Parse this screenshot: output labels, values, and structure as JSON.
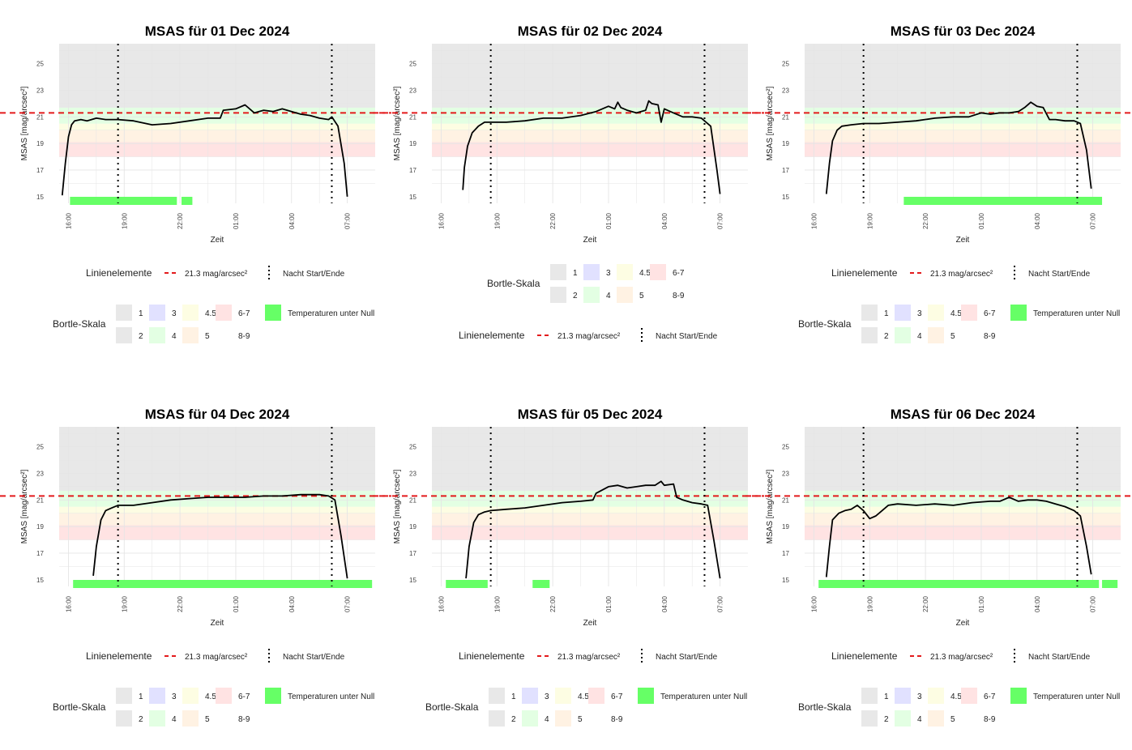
{
  "legend": {
    "line_title": "Linienelemente",
    "line_threshold_label": "21.3 mag/arcsec²",
    "line_night_label": "Nacht Start/Ende",
    "bortle_title": "Bortle-Skala",
    "bortle_items": [
      {
        "label": "1",
        "color": "#e8e8e8"
      },
      {
        "label": "2",
        "color": "#e8e8e8"
      },
      {
        "label": "3",
        "color": "#e1e1ff"
      },
      {
        "label": "4",
        "color": "#e3ffe3"
      },
      {
        "label": "4.5",
        "color": "#fdfde3"
      },
      {
        "label": "5",
        "color": "#fff2e3"
      },
      {
        "label": "6-7",
        "color": "#ffe3e3"
      },
      {
        "label": "8-9",
        "color": "#ffffff"
      }
    ],
    "frost_label": "Temperaturen unter Null",
    "frost_color": "#66ff66"
  },
  "colors": {
    "threshold_line": "#e31a1c",
    "msas_line": "#000000",
    "grid": "#e5e5e5",
    "band_top": "#e8e8e8"
  },
  "chart_data": [
    {
      "type": "line",
      "title": "MSAS für 01 Dec 2024",
      "xlabel": "Zeit",
      "ylabel": "MSAS [mag/arcsec²]",
      "x_ticks": [
        "16:00",
        "19:00",
        "22:00",
        "01:00",
        "04:00",
        "07:00"
      ],
      "y_ticks": [
        15,
        17,
        19,
        21,
        23,
        25
      ],
      "ylim": [
        14.5,
        26.5
      ],
      "xlim_hours": [
        15.5,
        32.5
      ],
      "threshold": 21.3,
      "night_start": "18:40",
      "night_end": "06:10",
      "bortle_bands": [
        {
          "class": "6-7",
          "range": [
            18.0,
            19.1
          ]
        },
        {
          "class": "5",
          "range": [
            19.1,
            20.0
          ]
        },
        {
          "class": "4.5",
          "range": [
            20.0,
            20.49
          ]
        },
        {
          "class": "4",
          "range": [
            20.49,
            21.69
          ]
        }
      ],
      "frost_periods": [
        [
          "16:05",
          "21:50"
        ],
        [
          "22:05",
          "22:40"
        ]
      ],
      "series": [
        {
          "x": [
            "15:40",
            "15:50",
            "16:00",
            "16:10",
            "16:20",
            "16:40",
            "17:00",
            "17:30",
            "18:00",
            "18:40",
            "19:30",
            "20:30",
            "21:30",
            "22:30",
            "23:30",
            "00:10",
            "00:20",
            "01:00",
            "01:30",
            "02:00",
            "02:30",
            "03:00",
            "03:30",
            "04:00",
            "04:30",
            "05:00",
            "05:30",
            "06:00",
            "06:10",
            "06:30",
            "06:50",
            "07:00"
          ],
          "y": [
            15.1,
            17.5,
            19.5,
            20.4,
            20.7,
            20.8,
            20.7,
            20.9,
            20.8,
            20.8,
            20.7,
            20.4,
            20.5,
            20.7,
            20.9,
            20.9,
            21.5,
            21.6,
            21.9,
            21.3,
            21.5,
            21.4,
            21.6,
            21.4,
            21.2,
            21.1,
            20.9,
            20.8,
            21.0,
            20.3,
            17.5,
            15.0
          ]
        }
      ]
    },
    {
      "type": "line",
      "title": "MSAS für 02 Dec 2024",
      "xlabel": "Zeit",
      "ylabel": "MSAS [mag/arcsec²]",
      "x_ticks": [
        "16:00",
        "19:00",
        "22:00",
        "01:00",
        "04:00",
        "07:00"
      ],
      "y_ticks": [
        15,
        17,
        19,
        21,
        23,
        25
      ],
      "ylim": [
        14.5,
        26.5
      ],
      "xlim_hours": [
        15.5,
        32.5
      ],
      "threshold": 21.3,
      "night_start": "18:40",
      "night_end": "06:10",
      "bortle_bands": [
        {
          "class": "6-7",
          "range": [
            18.0,
            19.1
          ]
        },
        {
          "class": "5",
          "range": [
            19.1,
            20.0
          ]
        },
        {
          "class": "4.5",
          "range": [
            20.0,
            20.49
          ]
        },
        {
          "class": "4",
          "range": [
            20.49,
            21.69
          ]
        }
      ],
      "frost_periods": [],
      "series": [
        {
          "x": [
            "17:10",
            "17:15",
            "17:25",
            "17:40",
            "18:00",
            "18:20",
            "18:40",
            "19:30",
            "20:30",
            "21:30",
            "22:30",
            "23:30",
            "00:20",
            "00:40",
            "01:00",
            "01:20",
            "01:30",
            "01:40",
            "02:00",
            "02:30",
            "03:00",
            "03:10",
            "03:20",
            "03:40",
            "03:50",
            "04:00",
            "04:30",
            "05:00",
            "05:30",
            "06:00",
            "06:30",
            "06:50",
            "07:00"
          ],
          "y": [
            15.5,
            17.2,
            18.8,
            19.8,
            20.3,
            20.6,
            20.6,
            20.6,
            20.7,
            20.9,
            20.9,
            21.1,
            21.4,
            21.6,
            21.8,
            21.6,
            22.1,
            21.7,
            21.5,
            21.3,
            21.5,
            22.2,
            22.0,
            21.9,
            20.6,
            21.6,
            21.3,
            21.0,
            21.0,
            20.9,
            20.3,
            17.0,
            15.2
          ]
        }
      ]
    },
    {
      "type": "line",
      "title": "MSAS für 03 Dec 2024",
      "xlabel": "Zeit",
      "ylabel": "MSAS [mag/arcsec²]",
      "x_ticks": [
        "16:00",
        "19:00",
        "22:00",
        "01:00",
        "04:00",
        "07:00"
      ],
      "y_ticks": [
        15,
        17,
        19,
        21,
        23,
        25
      ],
      "ylim": [
        14.5,
        26.5
      ],
      "xlim_hours": [
        15.5,
        32.5
      ],
      "threshold": 21.3,
      "night_start": "18:40",
      "night_end": "06:10",
      "bortle_bands": [
        {
          "class": "6-7",
          "range": [
            18.0,
            19.1
          ]
        },
        {
          "class": "5",
          "range": [
            19.1,
            20.0
          ]
        },
        {
          "class": "4.5",
          "range": [
            20.0,
            20.49
          ]
        },
        {
          "class": "4",
          "range": [
            20.49,
            21.69
          ]
        }
      ],
      "frost_periods": [
        [
          "20:50",
          "07:30"
        ]
      ],
      "series": [
        {
          "x": [
            "16:40",
            "16:50",
            "17:00",
            "17:15",
            "17:30",
            "18:00",
            "18:40",
            "19:30",
            "20:30",
            "21:30",
            "22:30",
            "23:30",
            "00:20",
            "01:00",
            "01:30",
            "02:00",
            "02:30",
            "03:00",
            "03:20",
            "03:40",
            "04:00",
            "04:20",
            "04:40",
            "05:00",
            "05:30",
            "06:00",
            "06:20",
            "06:40",
            "06:55"
          ],
          "y": [
            15.2,
            17.5,
            19.2,
            20.0,
            20.3,
            20.4,
            20.5,
            20.5,
            20.6,
            20.7,
            20.9,
            21.0,
            21.0,
            21.3,
            21.2,
            21.3,
            21.3,
            21.4,
            21.7,
            22.1,
            21.8,
            21.7,
            20.8,
            20.8,
            20.7,
            20.7,
            20.5,
            18.5,
            15.6
          ]
        }
      ]
    },
    {
      "type": "line",
      "title": "MSAS für 04 Dec 2024",
      "xlabel": "Zeit",
      "ylabel": "MSAS [mag/arcsec²]",
      "x_ticks": [
        "16:00",
        "19:00",
        "22:00",
        "01:00",
        "04:00",
        "07:00"
      ],
      "y_ticks": [
        15,
        17,
        19,
        21,
        23,
        25
      ],
      "ylim": [
        14.5,
        26.5
      ],
      "xlim_hours": [
        15.5,
        32.5
      ],
      "threshold": 21.3,
      "night_start": "18:40",
      "night_end": "06:10",
      "bortle_bands": [
        {
          "class": "6-7",
          "range": [
            18.0,
            19.1
          ]
        },
        {
          "class": "5",
          "range": [
            19.1,
            20.0
          ]
        },
        {
          "class": "4.5",
          "range": [
            20.0,
            20.49
          ]
        },
        {
          "class": "4",
          "range": [
            20.49,
            21.69
          ]
        }
      ],
      "frost_periods": [
        [
          "16:15",
          "08:20"
        ]
      ],
      "series": [
        {
          "x": [
            "17:20",
            "17:30",
            "17:45",
            "18:00",
            "18:20",
            "18:40",
            "19:30",
            "20:30",
            "21:30",
            "22:30",
            "23:30",
            "00:30",
            "01:30",
            "02:30",
            "03:30",
            "04:30",
            "05:30",
            "06:00",
            "06:20",
            "06:40",
            "07:00"
          ],
          "y": [
            15.3,
            17.5,
            19.5,
            20.2,
            20.4,
            20.6,
            20.6,
            20.8,
            21.0,
            21.1,
            21.2,
            21.2,
            21.2,
            21.3,
            21.3,
            21.4,
            21.4,
            21.3,
            21.0,
            18.3,
            15.1
          ]
        }
      ]
    },
    {
      "type": "line",
      "title": "MSAS für 05 Dec 2024",
      "xlabel": "Zeit",
      "ylabel": "MSAS [mag/arcsec²]",
      "x_ticks": [
        "16:00",
        "19:00",
        "22:00",
        "01:00",
        "04:00",
        "07:00"
      ],
      "y_ticks": [
        15,
        17,
        19,
        21,
        23,
        25
      ],
      "ylim": [
        14.5,
        26.5
      ],
      "xlim_hours": [
        15.5,
        32.5
      ],
      "threshold": 21.3,
      "night_start": "18:40",
      "night_end": "06:10",
      "bortle_bands": [
        {
          "class": "6-7",
          "range": [
            18.0,
            19.1
          ]
        },
        {
          "class": "5",
          "range": [
            19.1,
            20.0
          ]
        },
        {
          "class": "4.5",
          "range": [
            20.0,
            20.49
          ]
        },
        {
          "class": "4",
          "range": [
            20.49,
            21.69
          ]
        }
      ],
      "frost_periods": [
        [
          "16:15",
          "18:30"
        ],
        [
          "20:55",
          "21:50"
        ]
      ],
      "series": [
        {
          "x": [
            "17:20",
            "17:30",
            "17:45",
            "18:00",
            "18:20",
            "18:40",
            "19:30",
            "20:30",
            "21:30",
            "22:30",
            "23:30",
            "00:10",
            "00:20",
            "01:00",
            "01:30",
            "02:00",
            "02:30",
            "03:00",
            "03:30",
            "03:50",
            "04:00",
            "04:30",
            "04:40",
            "05:00",
            "05:30",
            "06:00",
            "06:20",
            "06:40",
            "07:00"
          ],
          "y": [
            15.1,
            17.5,
            19.3,
            19.9,
            20.1,
            20.2,
            20.3,
            20.4,
            20.6,
            20.8,
            20.9,
            21.0,
            21.5,
            22.0,
            22.1,
            21.9,
            22.0,
            22.1,
            22.1,
            22.4,
            22.1,
            22.2,
            21.2,
            21.0,
            20.8,
            20.7,
            20.6,
            18.0,
            15.1
          ]
        }
      ]
    },
    {
      "type": "line",
      "title": "MSAS für 06 Dec 2024",
      "xlabel": "Zeit",
      "ylabel": "MSAS [mag/arcsec²]",
      "x_ticks": [
        "16:00",
        "19:00",
        "22:00",
        "01:00",
        "04:00",
        "07:00"
      ],
      "y_ticks": [
        15,
        17,
        19,
        21,
        23,
        25
      ],
      "ylim": [
        14.5,
        26.5
      ],
      "xlim_hours": [
        15.5,
        32.5
      ],
      "threshold": 21.3,
      "night_start": "18:40",
      "night_end": "06:10",
      "bortle_bands": [
        {
          "class": "6-7",
          "range": [
            18.0,
            19.1
          ]
        },
        {
          "class": "5",
          "range": [
            19.1,
            20.0
          ]
        },
        {
          "class": "4.5",
          "range": [
            20.0,
            20.49
          ]
        },
        {
          "class": "4",
          "range": [
            20.49,
            21.69
          ]
        }
      ],
      "frost_periods": [
        [
          "16:15",
          "07:20"
        ],
        [
          "07:30",
          "08:20"
        ]
      ],
      "series": [
        {
          "x": [
            "16:40",
            "16:50",
            "17:00",
            "17:20",
            "17:40",
            "18:00",
            "18:20",
            "18:40",
            "19:00",
            "19:20",
            "19:40",
            "20:00",
            "20:30",
            "21:30",
            "22:30",
            "23:30",
            "00:30",
            "01:30",
            "02:00",
            "02:30",
            "03:00",
            "03:30",
            "04:00",
            "04:30",
            "05:00",
            "05:30",
            "06:00",
            "06:20",
            "06:40",
            "06:55"
          ],
          "y": [
            15.2,
            17.5,
            19.5,
            20.0,
            20.2,
            20.3,
            20.6,
            20.2,
            19.6,
            19.8,
            20.2,
            20.6,
            20.7,
            20.6,
            20.7,
            20.6,
            20.8,
            20.9,
            20.9,
            21.2,
            20.9,
            21.0,
            21.0,
            20.9,
            20.7,
            20.5,
            20.2,
            19.8,
            17.5,
            15.4
          ]
        }
      ]
    }
  ]
}
